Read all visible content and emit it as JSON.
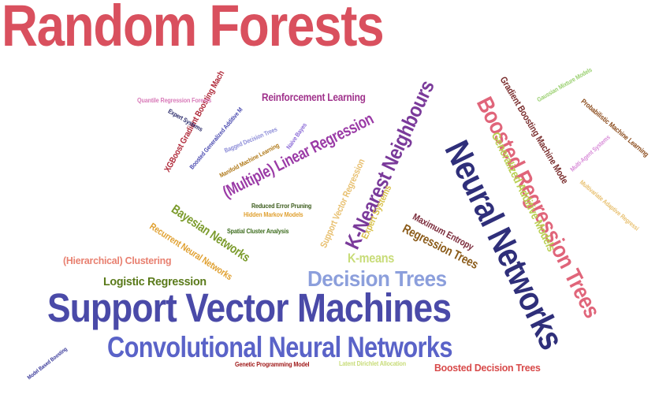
{
  "words": [
    {
      "text": "Random Forests",
      "color": "#d9505e"
    },
    {
      "text": "Neural Networks",
      "color": "#2f2f7a"
    },
    {
      "text": "Support Vector Machines",
      "color": "#4a4aa8"
    },
    {
      "text": "Convolutional Neural Networks",
      "color": "#5a63c8"
    },
    {
      "text": "Boosted Regression Trees",
      "color": "#e0657a"
    },
    {
      "text": "K-Nearest Neighbours",
      "color": "#7a3a9a"
    },
    {
      "text": "Decision Trees",
      "color": "#8c9fdc"
    },
    {
      "text": "Generalized Additive Models",
      "color": "#b9d052"
    },
    {
      "text": "(Multiple) Linear Regression",
      "color": "#9a3aa6"
    },
    {
      "text": "Gradient Boosting Machine Mode",
      "color": "#7a2e2e"
    },
    {
      "text": "Regression Trees",
      "color": "#8a5a18"
    },
    {
      "text": "Bayesian Networks",
      "color": "#7a9a2a"
    },
    {
      "text": "Recurrent Neural Networks",
      "color": "#e0a030"
    },
    {
      "text": "Reinforcement Learning",
      "color": "#a0338c"
    },
    {
      "text": "XGBoost Gradient Boosting Mach",
      "color": "#b02a3a"
    },
    {
      "text": "Logistic Regression",
      "color": "#5a7a1a"
    },
    {
      "text": "K-means",
      "color": "#c8dc78"
    },
    {
      "text": "Support Vector Regression",
      "color": "#e8c070"
    },
    {
      "text": "Maximum Entropy",
      "color": "#7a2a3a"
    },
    {
      "text": "Expert Systems",
      "color": "#d8c048"
    },
    {
      "text": "(Hierarchical) Clustering",
      "color": "#e88070"
    },
    {
      "text": "Boosted Decision Trees",
      "color": "#d84a4a"
    },
    {
      "text": "Probabilistic Machine Learning",
      "color": "#8a4a1a"
    },
    {
      "text": "Multivariate Adaptive Regressi",
      "color": "#e8c070"
    },
    {
      "text": "Multi-Agent Systems",
      "color": "#d88cd8"
    },
    {
      "text": "Gaussian Mixture Models",
      "color": "#9ad070"
    },
    {
      "text": "Quantile Regression Forests",
      "color": "#d87ab8"
    },
    {
      "text": "Expert Systems",
      "color": "#2a2a6a"
    },
    {
      "text": "Boosted Generalized Additive M",
      "color": "#4a4ab0"
    },
    {
      "text": "Bagged Decision Trees",
      "color": "#8c8cd8"
    },
    {
      "text": "Naive Bayes",
      "color": "#8c6cd8"
    },
    {
      "text": "Manifold Machine Learning",
      "color": "#b07a1a"
    },
    {
      "text": "Reduced Error Pruning",
      "color": "#3a5a1a"
    },
    {
      "text": "Hidden Markov Models",
      "color": "#e0a030"
    },
    {
      "text": "Spatial Cluster Analysis",
      "color": "#3a6a1a"
    },
    {
      "text": "Model Based Boosting",
      "color": "#3a3a9a"
    },
    {
      "text": "Genetic Programming Model",
      "color": "#a01a1a"
    },
    {
      "text": "Latent Dirichlet Allocation",
      "color": "#c8dc78"
    }
  ]
}
